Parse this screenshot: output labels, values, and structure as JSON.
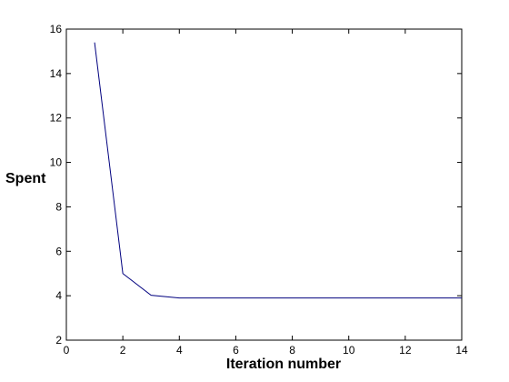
{
  "chart_data": {
    "type": "line",
    "title": "",
    "xlabel": "Iteration number",
    "ylabel": "Spent",
    "xlim": [
      0,
      14
    ],
    "ylim": [
      2,
      16
    ],
    "xticks": [
      0,
      2,
      4,
      6,
      8,
      10,
      12,
      14
    ],
    "yticks": [
      2,
      4,
      6,
      8,
      10,
      12,
      14,
      16
    ],
    "grid": false,
    "series": [
      {
        "color": "#00007f",
        "x": [
          1,
          2,
          3,
          4,
          5,
          6,
          7,
          8,
          9,
          10,
          11,
          12,
          13,
          14
        ],
        "y": [
          15.4,
          5.0,
          4.02,
          3.9,
          3.9,
          3.9,
          3.9,
          3.9,
          3.9,
          3.9,
          3.9,
          3.9,
          3.9,
          3.9
        ]
      }
    ]
  }
}
